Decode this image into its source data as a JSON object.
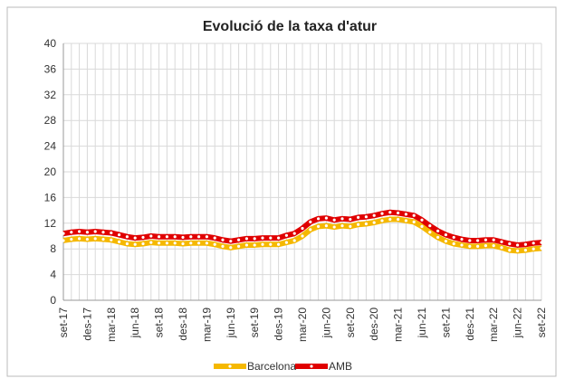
{
  "chart_data": {
    "type": "line",
    "title": "Evolució de la taxa d'atur",
    "categories": [
      "set-17",
      null,
      null,
      "des-17",
      null,
      null,
      "mar-18",
      null,
      null,
      "jun-18",
      null,
      null,
      "set-18",
      null,
      null,
      "des-18",
      null,
      null,
      "mar-19",
      null,
      null,
      "jun-19",
      null,
      null,
      "set-19",
      null,
      null,
      "des-19",
      null,
      null,
      "mar-20",
      null,
      null,
      "jun-20",
      null,
      null,
      "set-20",
      null,
      null,
      "des-20",
      null,
      null,
      "mar-21",
      null,
      null,
      "jun-21",
      null,
      null,
      "set-21",
      null,
      null,
      "des-21",
      null,
      null,
      "mar-22",
      null,
      null,
      "jun-22",
      null,
      null,
      "set-22"
    ],
    "series": [
      {
        "name": "Barcelona",
        "color": "#f5b800",
        "values": [
          9.3,
          9.5,
          9.6,
          9.5,
          9.6,
          9.5,
          9.4,
          9.1,
          8.8,
          8.7,
          8.8,
          9.0,
          8.9,
          8.9,
          8.9,
          8.8,
          8.9,
          8.9,
          8.9,
          8.7,
          8.4,
          8.2,
          8.4,
          8.6,
          8.6,
          8.7,
          8.7,
          8.7,
          9.0,
          9.3,
          10.0,
          11.0,
          11.5,
          11.6,
          11.4,
          11.6,
          11.5,
          11.8,
          11.9,
          12.1,
          12.4,
          12.6,
          12.6,
          12.4,
          12.2,
          11.5,
          10.6,
          9.8,
          9.2,
          8.8,
          8.6,
          8.4,
          8.4,
          8.5,
          8.5,
          8.2,
          7.8,
          7.7,
          7.8,
          8.0,
          8.1
        ]
      },
      {
        "name": "AMB",
        "color": "#e00000",
        "values": [
          10.4,
          10.6,
          10.7,
          10.6,
          10.7,
          10.6,
          10.5,
          10.2,
          9.9,
          9.7,
          9.8,
          10.0,
          9.9,
          9.9,
          9.9,
          9.8,
          9.9,
          9.9,
          9.9,
          9.7,
          9.4,
          9.2,
          9.4,
          9.6,
          9.6,
          9.7,
          9.7,
          9.7,
          10.1,
          10.4,
          11.2,
          12.2,
          12.7,
          12.8,
          12.5,
          12.7,
          12.6,
          12.9,
          13.0,
          13.2,
          13.5,
          13.7,
          13.6,
          13.4,
          13.2,
          12.5,
          11.6,
          10.8,
          10.2,
          9.8,
          9.5,
          9.3,
          9.3,
          9.4,
          9.4,
          9.1,
          8.8,
          8.6,
          8.7,
          8.9,
          9.0
        ]
      }
    ],
    "ylim": [
      0,
      40
    ],
    "yticks": [
      0,
      4,
      8,
      12,
      16,
      20,
      24,
      28,
      32,
      36,
      40
    ],
    "grid": true
  }
}
